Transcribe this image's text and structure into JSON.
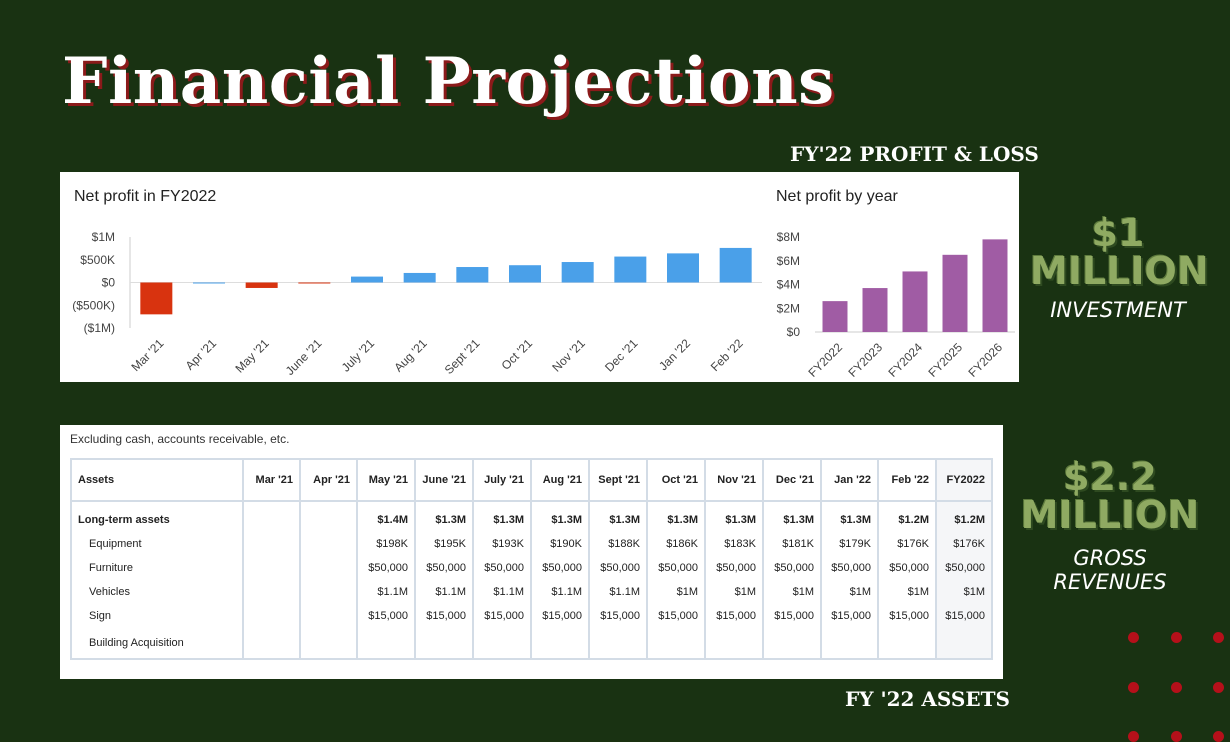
{
  "title": "Financial Projections",
  "headings": {
    "profit_loss": "FY'22 PROFIT & LOSS",
    "assets": "FY '22 ASSETS"
  },
  "callouts": [
    {
      "line1": "$1",
      "line2": "MILLION",
      "caption": "INVESTMENT"
    },
    {
      "line1": "$2.2",
      "line2": "MILLION",
      "caption_line1": "GROSS",
      "caption_line2": "REVENUES"
    }
  ],
  "colors": {
    "background": "#193212",
    "positive": "#4aa0e9",
    "negative": "#d8330f",
    "purple": "#a05ca4",
    "callout_green": "#8faa62",
    "title_shadow": "#8b1a1a",
    "accent_dots": "#b5101a"
  },
  "chart_data": [
    {
      "type": "bar",
      "title": "Net profit in FY2022",
      "categories": [
        "Mar '21",
        "Apr '21",
        "May '21",
        "June '21",
        "July '21",
        "Aug '21",
        "Sept '21",
        "Oct '21",
        "Nov '21",
        "Dec '21",
        "Jan '22",
        "Feb '22"
      ],
      "values": [
        -700000,
        0,
        -120000,
        -10000,
        130000,
        210000,
        340000,
        380000,
        450000,
        570000,
        640000,
        760000
      ],
      "ytick_labels": [
        "$1M",
        "$500K",
        "$0",
        "($500K)",
        "($1M)"
      ],
      "ytick_values": [
        1000000,
        500000,
        0,
        -500000,
        -1000000
      ],
      "ylim": [
        -1000000,
        1000000
      ]
    },
    {
      "type": "bar",
      "title": "Net profit by year",
      "categories": [
        "FY2022",
        "FY2023",
        "FY2024",
        "FY2025",
        "FY2026"
      ],
      "values": [
        2600000,
        3700000,
        5100000,
        6500000,
        7800000
      ],
      "ytick_labels": [
        "$8M",
        "$6M",
        "$4M",
        "$2M",
        "$0"
      ],
      "ytick_values": [
        8000000,
        6000000,
        4000000,
        2000000,
        0
      ],
      "ylim": [
        0,
        8000000
      ]
    }
  ],
  "table": {
    "note": "Excluding cash, accounts receivable, etc.",
    "headers": [
      "Assets",
      "Mar '21",
      "Apr '21",
      "May '21",
      "June '21",
      "July '21",
      "Aug '21",
      "Sept '21",
      "Oct '21",
      "Nov '21",
      "Dec '21",
      "Jan '22",
      "Feb '22",
      "FY2022"
    ],
    "rows": [
      [
        "Long-term assets",
        "",
        "",
        "$1.4M",
        "$1.3M",
        "$1.3M",
        "$1.3M",
        "$1.3M",
        "$1.3M",
        "$1.3M",
        "$1.3M",
        "$1.3M",
        "$1.2M",
        "$1.2M"
      ],
      [
        "Equipment",
        "",
        "",
        "$198K",
        "$195K",
        "$193K",
        "$190K",
        "$188K",
        "$186K",
        "$183K",
        "$181K",
        "$179K",
        "$176K",
        "$176K"
      ],
      [
        "Furniture",
        "",
        "",
        "$50,000",
        "$50,000",
        "$50,000",
        "$50,000",
        "$50,000",
        "$50,000",
        "$50,000",
        "$50,000",
        "$50,000",
        "$50,000",
        "$50,000"
      ],
      [
        "Vehicles",
        "",
        "",
        "$1.1M",
        "$1.1M",
        "$1.1M",
        "$1.1M",
        "$1.1M",
        "$1M",
        "$1M",
        "$1M",
        "$1M",
        "$1M",
        "$1M"
      ],
      [
        "Sign",
        "",
        "",
        "$15,000",
        "$15,000",
        "$15,000",
        "$15,000",
        "$15,000",
        "$15,000",
        "$15,000",
        "$15,000",
        "$15,000",
        "$15,000",
        "$15,000"
      ],
      [
        "Building Acquisition",
        "",
        "",
        "",
        "",
        "",
        "",
        "",
        "",
        "",
        "",
        "",
        "",
        ""
      ]
    ]
  }
}
